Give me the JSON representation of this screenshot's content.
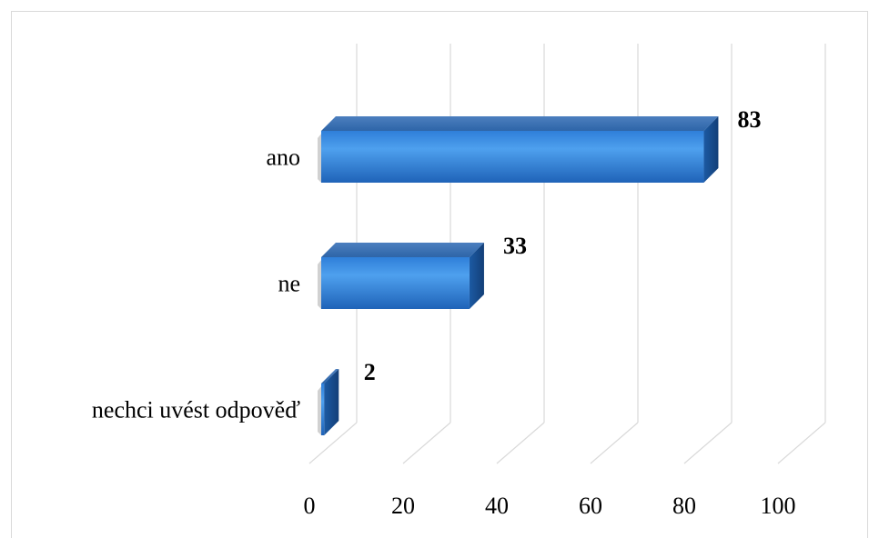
{
  "chart_data": {
    "type": "bar",
    "orientation": "horizontal",
    "style": "3d",
    "categories": [
      "ano",
      "ne",
      "nechci uvést odpověď"
    ],
    "values": [
      83,
      33,
      2
    ],
    "xlim": [
      0,
      100
    ],
    "xticks": [
      0,
      20,
      40,
      60,
      80,
      100
    ],
    "grid": true,
    "colors": {
      "bar_front": "#2f7ed8",
      "bar_top": "#3a6fb0",
      "bar_side": "#1b4f8f",
      "grid": "#d9d9d9"
    },
    "data_labels": [
      "83",
      "33",
      "2"
    ]
  }
}
